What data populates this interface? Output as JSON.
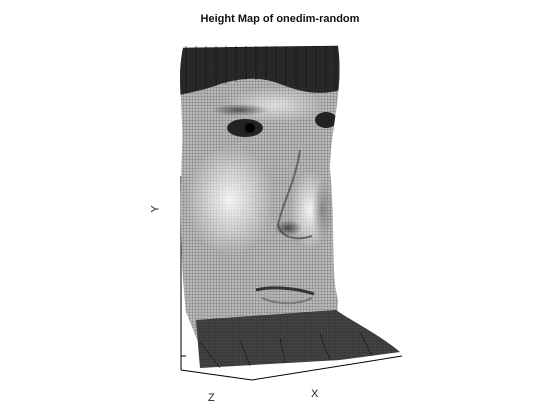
{
  "chart_data": {
    "type": "surface",
    "title": "Height Map of onedim-random",
    "xlabel": "X",
    "ylabel": "Y",
    "zlabel": "Z",
    "grid": false,
    "rendering": "wireframe mesh shaded by grayscale face texture",
    "colors": {
      "mesh": "#1a1a1a",
      "background": "#ffffff",
      "axes": "#000000"
    }
  }
}
